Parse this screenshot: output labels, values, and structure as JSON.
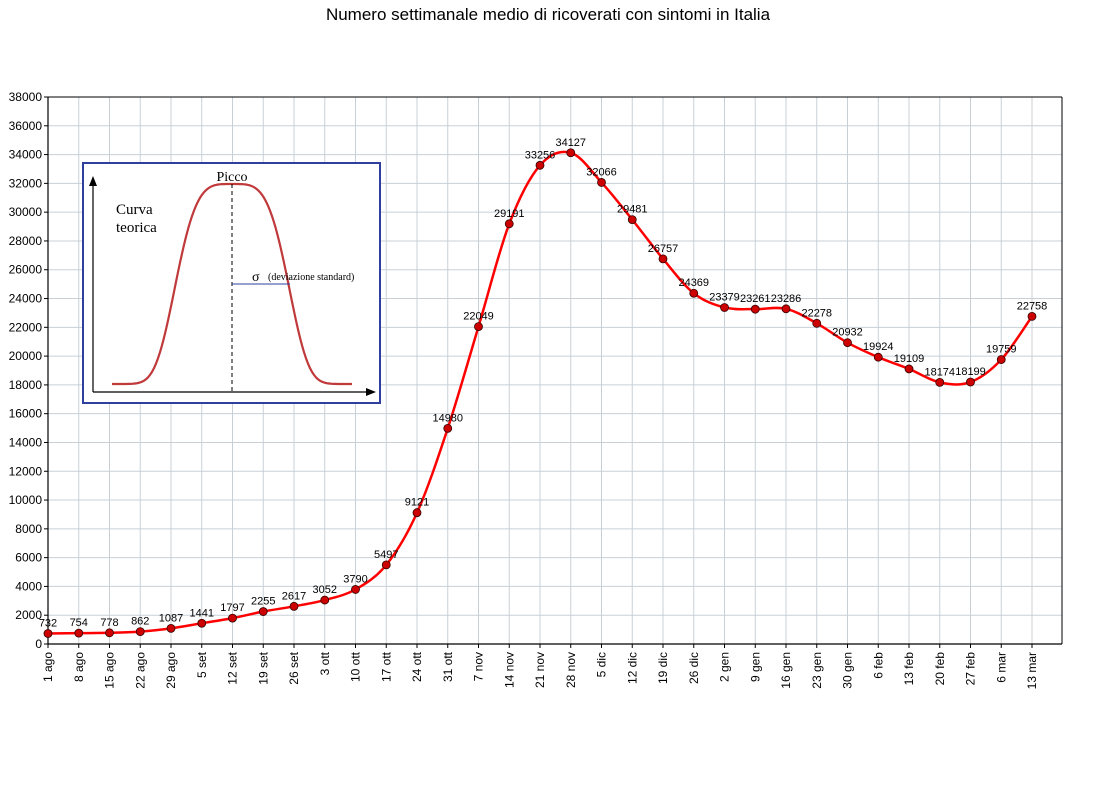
{
  "chart_data": {
    "type": "line",
    "title": "Numero settimanale medio di ricoverati con sintomi in Italia",
    "xlabel": "",
    "ylabel": "",
    "ylim": [
      0,
      38000
    ],
    "ytick_step": 2000,
    "grid": true,
    "categories": [
      "1 ago",
      "8 ago",
      "15 ago",
      "22 ago",
      "29 ago",
      "5 set",
      "12 set",
      "19 set",
      "26 set",
      "3 ott",
      "10 ott",
      "17 ott",
      "24 ott",
      "31 ott",
      "7 nov",
      "14 nov",
      "21 nov",
      "28 nov",
      "5 dic",
      "12 dic",
      "19 dic",
      "26 dic",
      "2 gen",
      "9 gen",
      "16 gen",
      "23 gen",
      "30 gen",
      "6 feb",
      "13 feb",
      "20 feb",
      "27 feb",
      "6 mar",
      "13 mar"
    ],
    "series": [
      {
        "values": [
          732,
          754,
          778,
          862,
          1087,
          1441,
          1797,
          2255,
          2617,
          3052,
          3790,
          5497,
          9121,
          14980,
          22049,
          29191,
          33256,
          34127,
          32066,
          29481,
          26757,
          24369,
          23379,
          23261,
          23286,
          22278,
          20932,
          19924,
          19109,
          18174,
          18199,
          19759,
          22758
        ],
        "color": "#ff0000",
        "marker_color": "#cc0000"
      }
    ],
    "inset": {
      "peak_label": "Picco",
      "curve_label_line1": "Curva",
      "curve_label_line2": "teorica",
      "sigma_symbol": "σ",
      "sigma_label": "(deviazione standard)",
      "border_color": "#2f3f9f",
      "curve_color": "#c0393b"
    }
  }
}
